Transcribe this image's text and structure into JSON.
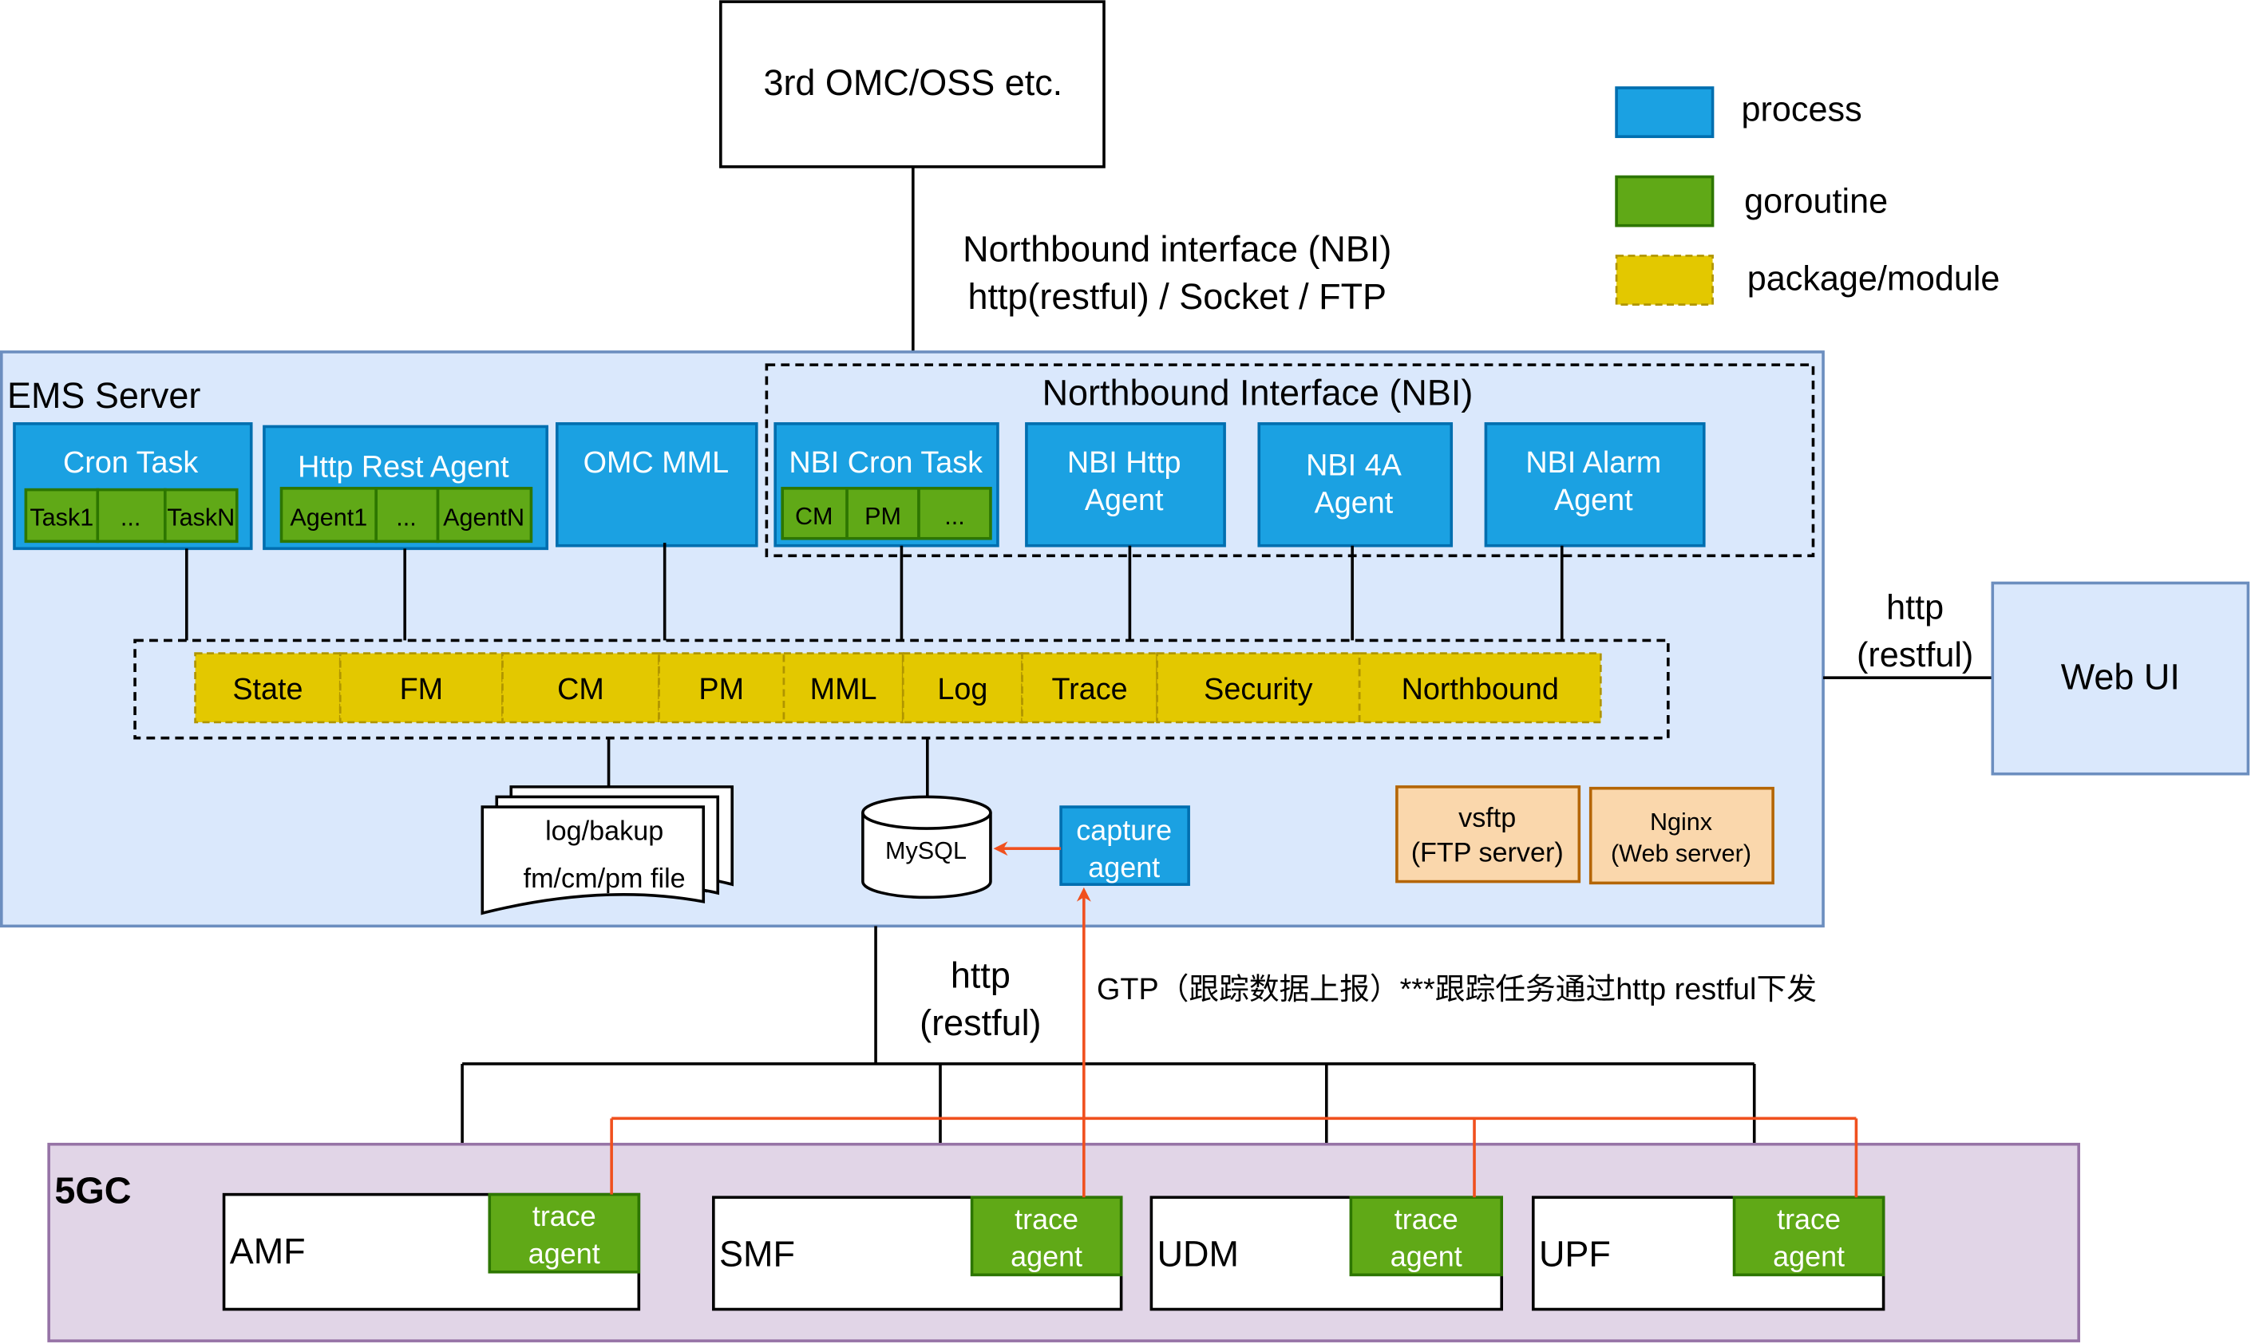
{
  "oss": {
    "label": "3rd OMC/OSS etc."
  },
  "nbi_link": {
    "line1": "Northbound interface (NBI)",
    "line2": "http(restful) / Socket / FTP"
  },
  "legend": [
    {
      "label": "process",
      "color": "#1ba1e2"
    },
    {
      "label": "goroutine",
      "color": "#60a917"
    },
    {
      "label": "package/module",
      "color": "#e3c800"
    }
  ],
  "ems": {
    "title": "EMS Server",
    "nbi_group_title": "Northbound Interface (NBI)",
    "processes": {
      "cron_task": {
        "title": "Cron Task",
        "subs": [
          "Task1",
          "...",
          "TaskN"
        ]
      },
      "http_rest": {
        "title": "Http Rest Agent",
        "subs": [
          "Agent1",
          "...",
          "AgentN"
        ]
      },
      "omc_mml": {
        "title": "OMC MML"
      },
      "nbi_cron": {
        "title": "NBI Cron Task",
        "subs": [
          "CM",
          "PM",
          "..."
        ]
      },
      "nbi_http": {
        "line1": "NBI Http",
        "line2": "Agent"
      },
      "nbi_4a": {
        "line1": "NBI 4A",
        "line2": "Agent"
      },
      "nbi_alarm": {
        "line1": "NBI Alarm",
        "line2": "Agent"
      }
    },
    "modules": [
      "State",
      "FM",
      "CM",
      "PM",
      "MML",
      "Log",
      "Trace",
      "Security",
      "Northbound"
    ],
    "files": {
      "line1": "log/bakup",
      "line2": "fm/cm/pm file"
    },
    "db": "MySQL",
    "capture": {
      "line1": "capture",
      "line2": "agent"
    },
    "vsftp": {
      "line1": "vsftp",
      "line2": "(FTP server)"
    },
    "nginx": {
      "line1": "Nginx",
      "line2": "(Web server)"
    }
  },
  "webui": {
    "label": "Web UI",
    "link_line1": "http",
    "link_line2": "(restful)"
  },
  "south_link": {
    "line1": "http",
    "line2": "(restful)"
  },
  "gtp_note": "GTP（跟踪数据上报）***跟踪任务通过http restful下发",
  "core": {
    "title": "5GC",
    "nfs": [
      {
        "name": "AMF",
        "agent1": "trace",
        "agent2": "agent"
      },
      {
        "name": "SMF",
        "agent1": "trace",
        "agent2": "agent"
      },
      {
        "name": "UDM",
        "agent1": "trace",
        "agent2": "agent"
      },
      {
        "name": "UPF",
        "agent1": "trace",
        "agent2": "agent"
      }
    ]
  }
}
